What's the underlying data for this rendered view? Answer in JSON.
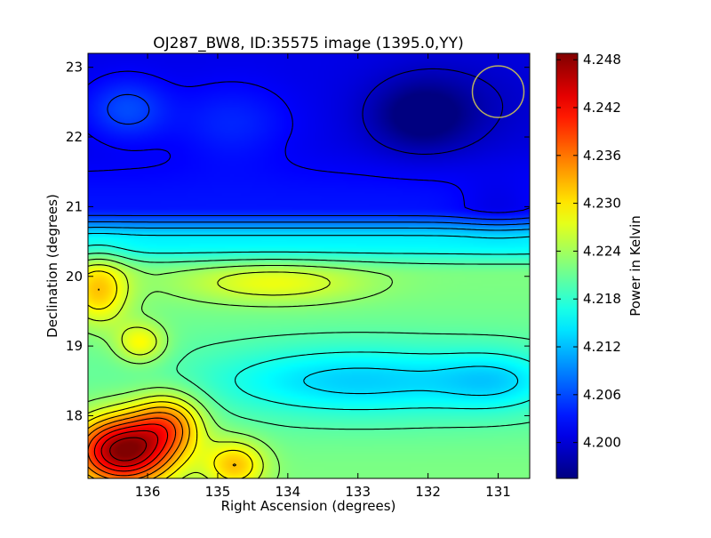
{
  "chart_data": {
    "type": "heatmap",
    "title": "OJ287_BW8, ID:35575 image (1395.0,YY)",
    "xlabel": "Right Ascension (degrees)",
    "ylabel": "Declination (degrees)",
    "xlim": [
      136.85,
      130.55
    ],
    "ylim": [
      17.1,
      23.2
    ],
    "x_ticks": [
      136,
      135,
      134,
      133,
      132,
      131
    ],
    "x_tick_labels": [
      "136",
      "135",
      "134",
      "133",
      "132",
      "131"
    ],
    "y_ticks": [
      18,
      19,
      20,
      21,
      22,
      23
    ],
    "y_tick_labels": [
      "18",
      "19",
      "20",
      "21",
      "22",
      "23"
    ],
    "colormap": "jet",
    "colorbar": {
      "label": "Power in Kelvin",
      "vmin": 4.1955,
      "vmax": 4.2488,
      "ticks": [
        4.2,
        4.206,
        4.212,
        4.218,
        4.224,
        4.23,
        4.236,
        4.242,
        4.248
      ],
      "tick_labels": [
        "4.200",
        "4.206",
        "4.212",
        "4.218",
        "4.224",
        "4.230",
        "4.236",
        "4.242",
        "4.248"
      ]
    },
    "grid": false,
    "contours": true,
    "beam_marker": {
      "ra": 131.0,
      "dec": 22.65,
      "color": "#b8b060"
    },
    "field_model": {
      "background_by_dec": [
        [
          17.1,
          4.222
        ],
        [
          18.0,
          4.221
        ],
        [
          19.0,
          4.221
        ],
        [
          20.0,
          4.222
        ],
        [
          20.5,
          4.215
        ],
        [
          21.0,
          4.203
        ],
        [
          22.0,
          4.201
        ],
        [
          23.2,
          4.201
        ]
      ],
      "features": [
        {
          "ra": 136.35,
          "dec": 17.5,
          "amp": 0.027,
          "sra": 0.5,
          "sdec": 0.35
        },
        {
          "ra": 135.7,
          "dec": 17.9,
          "amp": 0.012,
          "sra": 0.35,
          "sdec": 0.3
        },
        {
          "ra": 134.75,
          "dec": 17.3,
          "amp": 0.01,
          "sra": 0.3,
          "sdec": 0.25
        },
        {
          "ra": 136.7,
          "dec": 19.8,
          "amp": 0.01,
          "sra": 0.3,
          "sdec": 0.35
        },
        {
          "ra": 136.1,
          "dec": 19.05,
          "amp": 0.008,
          "sra": 0.25,
          "sdec": 0.2
        },
        {
          "ra": 134.2,
          "dec": 19.9,
          "amp": 0.006,
          "sra": 0.9,
          "sdec": 0.2
        },
        {
          "ra": 133.0,
          "dec": 18.5,
          "amp": -0.008,
          "sra": 1.5,
          "sdec": 0.35
        },
        {
          "ra": 131.0,
          "dec": 18.5,
          "amp": -0.005,
          "sra": 0.6,
          "sdec": 0.3
        },
        {
          "ra": 132.1,
          "dec": 22.3,
          "amp": -0.006,
          "sra": 0.5,
          "sdec": 0.35
        },
        {
          "ra": 131.5,
          "dec": 22.5,
          "amp": -0.002,
          "sra": 0.9,
          "sdec": 0.5
        },
        {
          "ra": 136.3,
          "dec": 22.4,
          "amp": 0.005,
          "sra": 0.4,
          "sdec": 0.3
        },
        {
          "ra": 134.8,
          "dec": 22.2,
          "amp": 0.003,
          "sra": 0.6,
          "sdec": 0.4
        },
        {
          "ra": 131.0,
          "dec": 21.0,
          "amp": -0.002,
          "sra": 0.4,
          "sdec": 0.3
        }
      ]
    }
  }
}
